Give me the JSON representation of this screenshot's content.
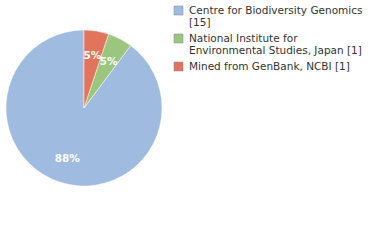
{
  "chart_data": {
    "type": "pie",
    "categories": [
      "Centre for Biodiversity Genomics [15]",
      "National Institute for Environmental Studies, Japan [1]",
      "Mined from GenBank, NCBI [1]"
    ],
    "values": [
      88,
      5,
      5
    ],
    "value_labels": [
      "88%",
      "5%",
      "5%"
    ],
    "colors": [
      "#9fbbe0",
      "#9cc57d",
      "#e0755c"
    ],
    "data_labels": true,
    "legend": "top-right"
  }
}
